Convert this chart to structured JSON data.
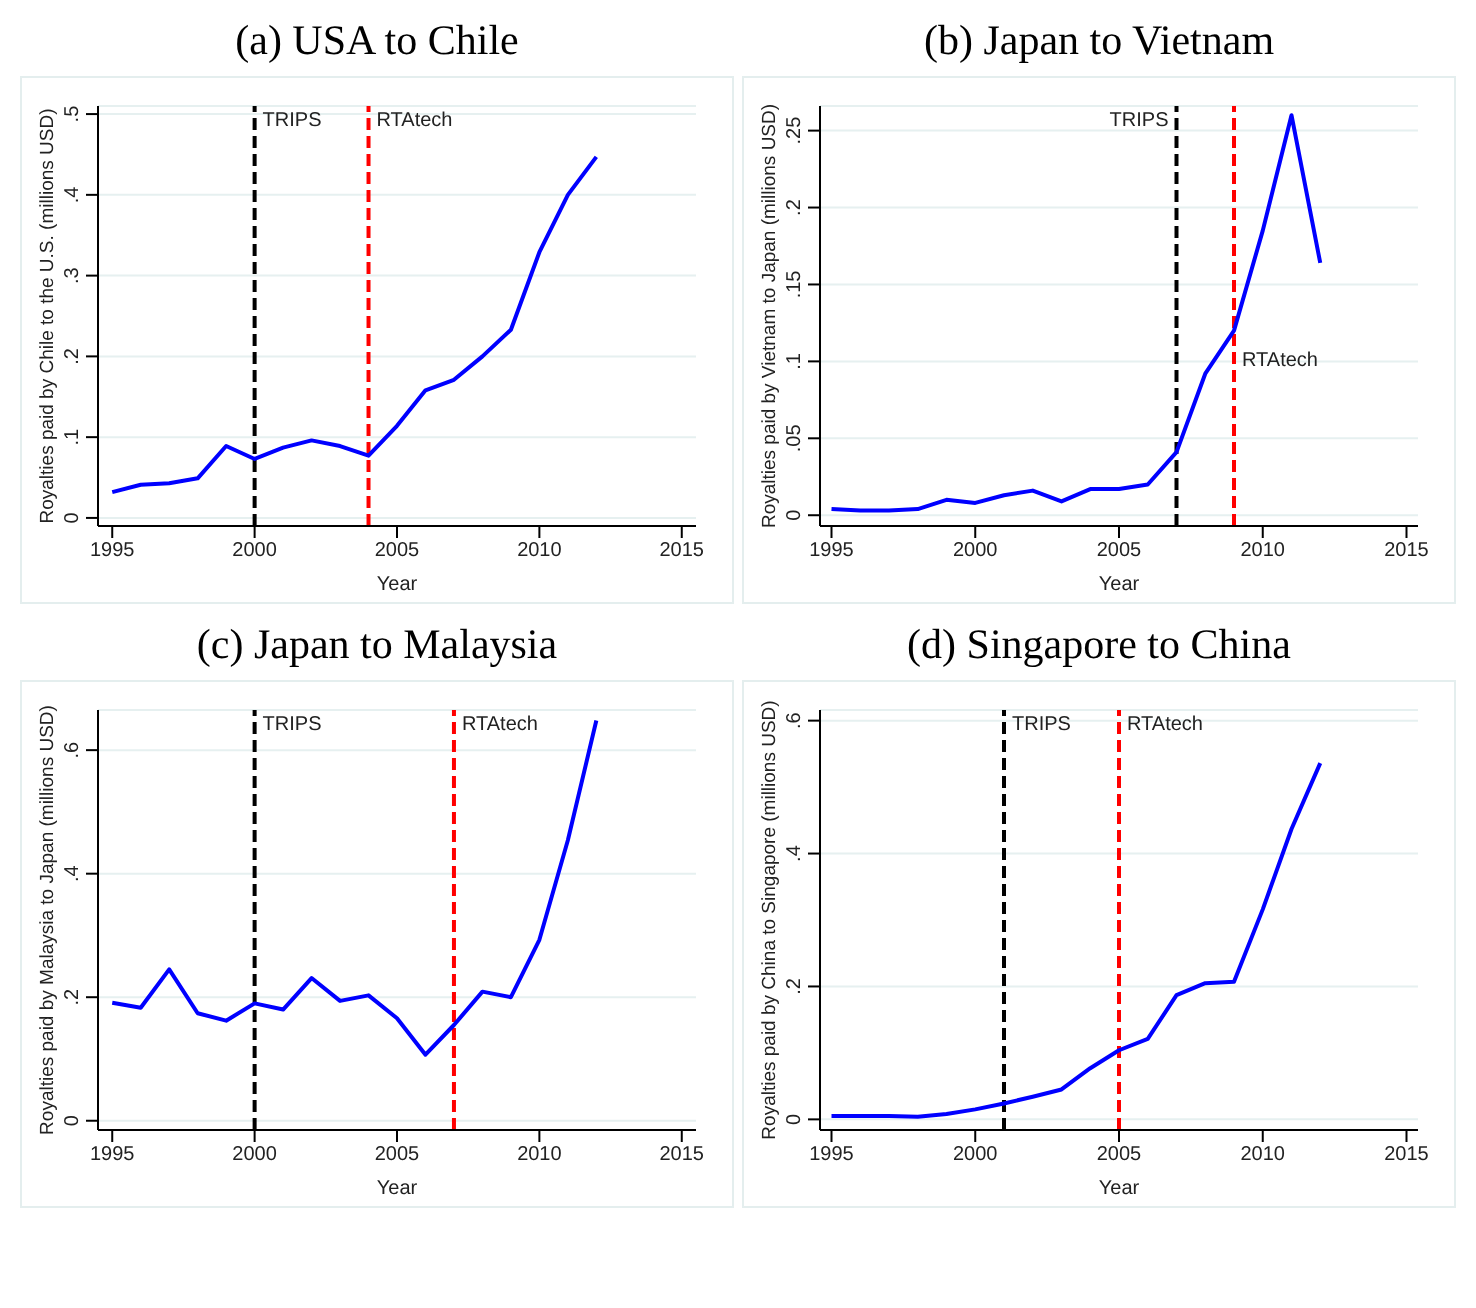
{
  "chart_data": [
    {
      "type": "line",
      "title": "(a) USA to Chile",
      "xlabel": "Year",
      "ylabel": "Royalties paid by Chile to the U.S. (millions USD)",
      "x": [
        1995,
        1996,
        1997,
        1998,
        1999,
        2000,
        2001,
        2002,
        2003,
        2004,
        2005,
        2006,
        2007,
        2008,
        2009,
        2010,
        2011,
        2012
      ],
      "series": [
        {
          "color": "#0000ff",
          "values": [
            0.032,
            0.041,
            0.043,
            0.049,
            0.089,
            0.073,
            0.087,
            0.096,
            0.089,
            0.077,
            0.114,
            0.158,
            0.171,
            0.2,
            0.233,
            0.329,
            0.4,
            0.447
          ]
        }
      ],
      "xlim": [
        1994.5,
        2015.5
      ],
      "xticks": [
        1995,
        2000,
        2005,
        2010,
        2015
      ],
      "ylim": [
        -0.01,
        0.51
      ],
      "yticks": [
        {
          "value": 0,
          "label": "0"
        },
        {
          "value": 0.1,
          "label": ".1"
        },
        {
          "value": 0.2,
          "label": ".2"
        },
        {
          "value": 0.3,
          "label": ".3"
        },
        {
          "value": 0.4,
          "label": ".4"
        },
        {
          "value": 0.5,
          "label": ".5"
        }
      ],
      "grid": "y",
      "marker": "none",
      "line_style": "solid",
      "legend": false,
      "ref_lines": [
        {
          "axis": "x",
          "value": 2000,
          "label": "TRIPS",
          "color": "#000000",
          "line_style": "dashed"
        },
        {
          "axis": "x",
          "value": 2004,
          "label": "RTAtech",
          "color": "#ff0000",
          "line_style": "dashed"
        }
      ]
    },
    {
      "type": "line",
      "title": "(b) Japan to Vietnam",
      "xlabel": "Year",
      "ylabel": "Royalties paid by Vietnam to Japan (millions USD)",
      "x": [
        1995,
        1996,
        1997,
        1998,
        1999,
        2000,
        2001,
        2002,
        2003,
        2004,
        2005,
        2006,
        2007,
        2008,
        2009,
        2010,
        2011,
        2012
      ],
      "series": [
        {
          "color": "#0000ff",
          "values": [
            0.004,
            0.003,
            0.003,
            0.004,
            0.01,
            0.008,
            0.013,
            0.016,
            0.009,
            0.017,
            0.017,
            0.02,
            0.041,
            0.092,
            0.12,
            0.185,
            0.26,
            0.164
          ]
        }
      ],
      "xlim": [
        1994.6,
        2015.4
      ],
      "xticks": [
        1995,
        2000,
        2005,
        2010,
        2015
      ],
      "ylim": [
        -0.007,
        0.266
      ],
      "yticks": [
        {
          "value": 0,
          "label": "0"
        },
        {
          "value": 0.05,
          "label": ".05"
        },
        {
          "value": 0.1,
          "label": ".1"
        },
        {
          "value": 0.15,
          "label": ".15"
        },
        {
          "value": 0.2,
          "label": ".2"
        },
        {
          "value": 0.25,
          "label": ".25"
        }
      ],
      "grid": "y",
      "marker": "none",
      "line_style": "solid",
      "legend": false,
      "ref_lines": [
        {
          "axis": "x",
          "value": 2007,
          "label": "TRIPS",
          "color": "#000000",
          "line_style": "dashed"
        },
        {
          "axis": "x",
          "value": 2009,
          "label": "RTAtech",
          "color": "#ff0000",
          "line_style": "dashed"
        }
      ]
    },
    {
      "type": "line",
      "title": "(c) Japan to Malaysia",
      "xlabel": "Year",
      "ylabel": "Royalties paid by Malaysia to Japan (millions USD)",
      "x": [
        1995,
        1996,
        1997,
        1998,
        1999,
        2000,
        2001,
        2002,
        2003,
        2004,
        2005,
        2006,
        2007,
        2008,
        2009,
        2010,
        2011,
        2012
      ],
      "series": [
        {
          "color": "#0000ff",
          "values": [
            0.191,
            0.183,
            0.245,
            0.174,
            0.162,
            0.19,
            0.18,
            0.231,
            0.194,
            0.203,
            0.166,
            0.107,
            0.155,
            0.209,
            0.2,
            0.293,
            0.454,
            0.648
          ]
        }
      ],
      "xlim": [
        1994.5,
        2015.5
      ],
      "xticks": [
        1995,
        2000,
        2005,
        2010,
        2015
      ],
      "ylim": [
        -0.015,
        0.665
      ],
      "yticks": [
        {
          "value": 0,
          "label": "0"
        },
        {
          "value": 0.2,
          "label": ".2"
        },
        {
          "value": 0.4,
          "label": ".4"
        },
        {
          "value": 0.6,
          "label": ".6"
        }
      ],
      "grid": "y",
      "marker": "none",
      "line_style": "solid",
      "legend": false,
      "ref_lines": [
        {
          "axis": "x",
          "value": 2000,
          "label": "TRIPS",
          "color": "#000000",
          "line_style": "dashed"
        },
        {
          "axis": "x",
          "value": 2007,
          "label": "RTAtech",
          "color": "#ff0000",
          "line_style": "dashed"
        }
      ]
    },
    {
      "type": "line",
      "title": "(d) Singapore to China",
      "xlabel": "Year",
      "ylabel": "Royalties paid by China to Singapore (millions USD)",
      "x": [
        1995,
        1996,
        1997,
        1998,
        1999,
        2000,
        2001,
        2002,
        2003,
        2004,
        2005,
        2006,
        2007,
        2008,
        2009,
        2010,
        2011,
        2012
      ],
      "series": [
        {
          "color": "#0000ff",
          "values": [
            0.005,
            0.005,
            0.005,
            0.004,
            0.008,
            0.015,
            0.024,
            0.034,
            0.045,
            0.077,
            0.104,
            0.121,
            0.187,
            0.205,
            0.207,
            0.316,
            0.437,
            0.536
          ]
        }
      ],
      "xlim": [
        1994.6,
        2015.4
      ],
      "xticks": [
        1995,
        2000,
        2005,
        2010,
        2015
      ],
      "ylim": [
        -0.016,
        0.616
      ],
      "yticks": [
        {
          "value": 0,
          "label": "0"
        },
        {
          "value": 0.2,
          "label": ".2"
        },
        {
          "value": 0.4,
          "label": ".4"
        },
        {
          "value": 0.6,
          "label": ".6"
        }
      ],
      "grid": "y",
      "marker": "none",
      "line_style": "solid",
      "legend": false,
      "ref_lines": [
        {
          "axis": "x",
          "value": 2001,
          "label": "TRIPS",
          "color": "#000000",
          "line_style": "dashed"
        },
        {
          "axis": "x",
          "value": 2005,
          "label": "RTAtech",
          "color": "#ff0000",
          "line_style": "dashed"
        }
      ]
    }
  ]
}
